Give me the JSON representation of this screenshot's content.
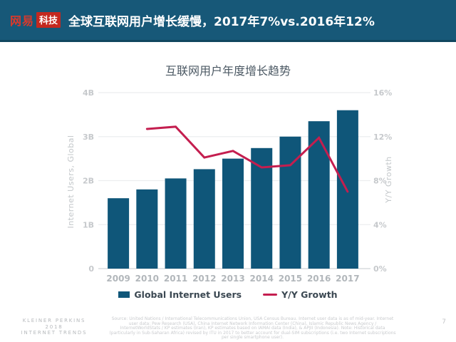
{
  "header": {
    "logo_brand": "网易",
    "logo_badge": "科技",
    "title": "全球互联网用户增长缓慢，2017年7%vs.2016年12%",
    "bg_color": "#175878",
    "logo_red": "#c4281f",
    "brand_red": "#d8392c"
  },
  "chart_data": {
    "type": "bar",
    "title": "互联网用户年度增长趋势",
    "categories": [
      "2009",
      "2010",
      "2011",
      "2012",
      "2013",
      "2014",
      "2015",
      "2016",
      "2017"
    ],
    "series": [
      {
        "name": "Global Internet Users",
        "type": "bar",
        "axis": "left",
        "unit": "B users",
        "color": "#0f5679",
        "values": [
          1.6,
          1.8,
          2.05,
          2.26,
          2.5,
          2.74,
          3.0,
          3.35,
          3.6
        ]
      },
      {
        "name": "Y/Y Growth",
        "type": "line",
        "axis": "right",
        "unit": "%",
        "color": "#c41e4f",
        "values": [
          null,
          12.7,
          12.9,
          10.1,
          10.7,
          9.2,
          9.4,
          11.9,
          7.0
        ]
      }
    ],
    "left_axis": {
      "label": "Internet Users, Global",
      "min": 0,
      "max": 4,
      "ticks": [
        {
          "value": 0,
          "label": "0"
        },
        {
          "value": 1,
          "label": "1B"
        },
        {
          "value": 2,
          "label": "2B"
        },
        {
          "value": 3,
          "label": "3B"
        },
        {
          "value": 4,
          "label": "4B"
        }
      ]
    },
    "right_axis": {
      "label": "Y/Y Growth",
      "min": 0,
      "max": 16,
      "ticks": [
        {
          "value": 0,
          "label": "0%"
        },
        {
          "value": 4,
          "label": "4%"
        },
        {
          "value": 8,
          "label": "8%"
        },
        {
          "value": 12,
          "label": "12%"
        },
        {
          "value": 16,
          "label": "16%"
        }
      ]
    },
    "grid": true,
    "legend_position": "bottom"
  },
  "legend": {
    "items": [
      {
        "label": "Global Internet Users",
        "color": "#0f5679",
        "marker": "square"
      },
      {
        "label": "Y/Y Growth",
        "color": "#c41e4f",
        "marker": "line"
      }
    ]
  },
  "footer": {
    "brand_lines": [
      "KLEINER PERKINS",
      "2018",
      "INTERNET TRENDS"
    ],
    "source_text": "Source: United Nations / International Telecommunications Union, USA Census Bureau. Internet user data is as of mid-year. Internet user data: Pew Research (USA), China Internet Network Information Center (China), Islamic Republic News Agency / InternetWorldStats / KP estimates (Iran), KP estimates based on IAMAI data (India), & APJII (Indonesia). Note: Historical data (particularly in Sub-Saharan Africa) revised by ITU in 2017 to better account for dual-SIM subscriptions (i.e. two Internet subscriptions per single smartphone user).",
    "page_number": "7"
  }
}
